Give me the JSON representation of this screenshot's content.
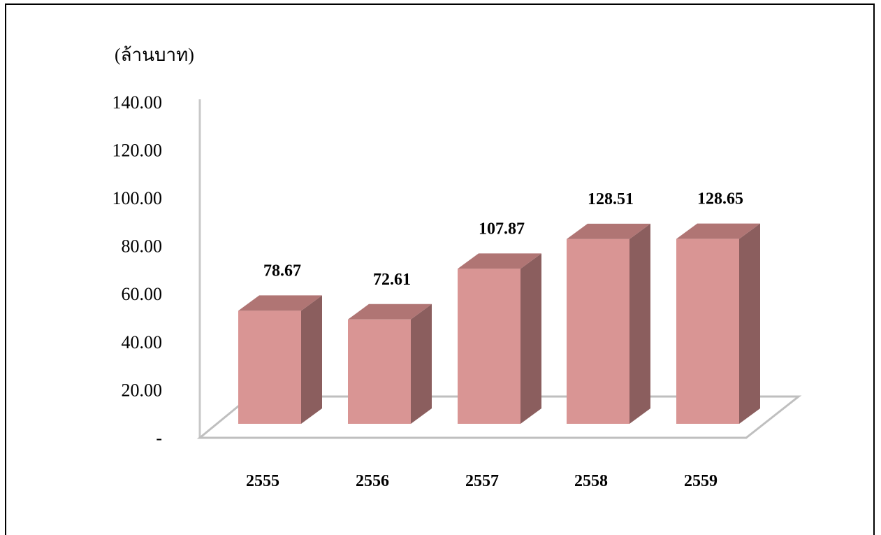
{
  "chart_data": {
    "type": "bar",
    "unit_label": "(ล้านบาท)",
    "categories": [
      "2555",
      "2556",
      "2557",
      "2558",
      "2559"
    ],
    "values": [
      78.67,
      72.61,
      107.87,
      128.51,
      128.65
    ],
    "value_labels": [
      "78.67",
      "72.61",
      "107.87",
      "128.51",
      "128.65"
    ],
    "y_ticks": [
      0,
      20,
      40,
      60,
      80,
      100,
      120,
      140
    ],
    "y_tick_labels": [
      "-",
      "20.00",
      "40.00",
      "60.00",
      "80.00",
      "100.00",
      "120.00",
      "140.00"
    ],
    "ylim": [
      0,
      140
    ],
    "grid": false,
    "legend": "none",
    "three_d": true,
    "colors": {
      "bar_front": "#d99594",
      "bar_top": "#b07574",
      "bar_side": "#8b5e5e",
      "floor_stroke": "#bfbfbf",
      "axis_wall": "#c8c8c8"
    }
  }
}
